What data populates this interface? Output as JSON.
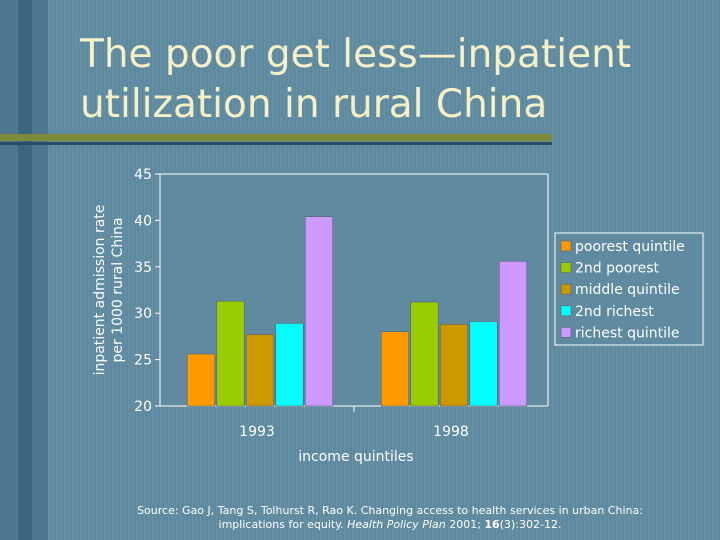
{
  "slide": {
    "title_line1": "The poor get less—inpatient",
    "title_line2": "utilization in rural China",
    "colors": {
      "background": "#5f8aa0",
      "title": "#f5f0c8",
      "accent_rule": "#7e8a3c"
    }
  },
  "source": {
    "prefix": "Source: Gao J, Tang S, Tolhurst R, Rao K. Changing access to health services in urban China:",
    "line2_start": "implications for equity. ",
    "journal": "Health Policy Plan",
    "year": " 2001; ",
    "volume": "16",
    "pages": "(3):302-12."
  },
  "chart_data": {
    "type": "bar",
    "title": "",
    "xlabel": "income quintiles",
    "ylabel_line1": "inpatient admission rate",
    "ylabel_line2": "per 1000 rural China",
    "ylim": [
      20,
      45
    ],
    "yticks": [
      20,
      25,
      30,
      35,
      40,
      45
    ],
    "grid": false,
    "legend_position": "right",
    "categories": [
      "1993",
      "1998"
    ],
    "series": [
      {
        "name": "poorest quintile",
        "color": "#ff9900",
        "values": [
          25.6,
          28.0
        ]
      },
      {
        "name": "2nd poorest",
        "color": "#99cc00",
        "values": [
          31.3,
          31.2
        ]
      },
      {
        "name": "middle quintile",
        "color": "#cc9900",
        "values": [
          27.7,
          28.8
        ]
      },
      {
        "name": "2nd richest",
        "color": "#00ffff",
        "values": [
          28.9,
          29.1
        ]
      },
      {
        "name": "richest quintile",
        "color": "#cc99ff",
        "values": [
          40.4,
          35.6
        ]
      }
    ]
  }
}
